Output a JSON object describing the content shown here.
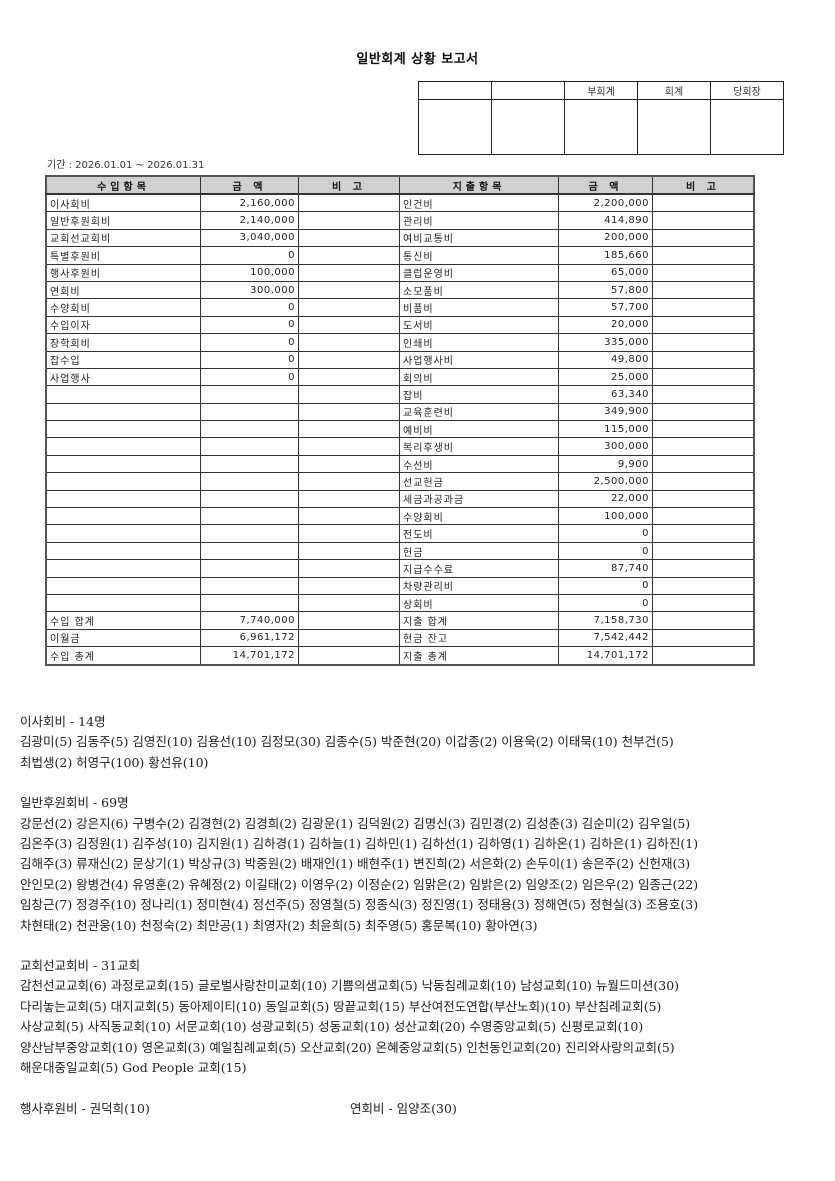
{
  "title": "일반회계 상황 보고서",
  "approval": {
    "headers": [
      "",
      "",
      "부회계",
      "회계",
      "당회장"
    ]
  },
  "period": "기간 : 2026.01.01 ~ 2026.01.31",
  "table": {
    "headers": [
      "수입항목",
      "금  액",
      "비  고",
      "지출항목",
      "금  액",
      "비  고"
    ],
    "income": [
      {
        "item": "이사회비",
        "amount": "2,160,000"
      },
      {
        "item": "일반후원회비",
        "amount": "2,140,000"
      },
      {
        "item": "교회선교회비",
        "amount": "3,040,000"
      },
      {
        "item": "특별후원비",
        "amount": "0"
      },
      {
        "item": "행사후원비",
        "amount": "100,000"
      },
      {
        "item": "연회비",
        "amount": "300,000"
      },
      {
        "item": "수양회비",
        "amount": "0"
      },
      {
        "item": "수입이자",
        "amount": "0"
      },
      {
        "item": "장학회비",
        "amount": "0"
      },
      {
        "item": "잡수입",
        "amount": "0"
      },
      {
        "item": "사업행사",
        "amount": "0"
      }
    ],
    "expense": [
      {
        "item": "인건비",
        "amount": "2,200,000"
      },
      {
        "item": "관리비",
        "amount": "414,890"
      },
      {
        "item": "여비교통비",
        "amount": "200,000"
      },
      {
        "item": "통신비",
        "amount": "185,660"
      },
      {
        "item": "클럽운영비",
        "amount": "65,000"
      },
      {
        "item": "소모품비",
        "amount": "57,800"
      },
      {
        "item": "비품비",
        "amount": "57,700"
      },
      {
        "item": "도서비",
        "amount": "20,000"
      },
      {
        "item": "인쇄비",
        "amount": "335,000"
      },
      {
        "item": "사업행사비",
        "amount": "49,800"
      },
      {
        "item": "회의비",
        "amount": "25,000"
      },
      {
        "item": "잡비",
        "amount": "63,340"
      },
      {
        "item": "교육훈련비",
        "amount": "349,900"
      },
      {
        "item": "예비비",
        "amount": "115,000"
      },
      {
        "item": "복리후생비",
        "amount": "300,000"
      },
      {
        "item": "수선비",
        "amount": "9,900"
      },
      {
        "item": "선교헌금",
        "amount": "2,500,000"
      },
      {
        "item": "세금과공과금",
        "amount": "22,000"
      },
      {
        "item": "수양회비",
        "amount": "100,000"
      },
      {
        "item": "전도비",
        "amount": "0"
      },
      {
        "item": "헌금",
        "amount": "0"
      },
      {
        "item": "지급수수료",
        "amount": "87,740"
      },
      {
        "item": "차량관리비",
        "amount": "0"
      },
      {
        "item": "상회비",
        "amount": "0"
      }
    ],
    "income_totals": [
      {
        "item": "수입 합계",
        "amount": "7,740,000"
      },
      {
        "item": "이월금",
        "amount": "6,961,172"
      },
      {
        "item": "수입 총계",
        "amount": "14,701,172"
      }
    ],
    "expense_totals": [
      {
        "item": "지출 합계",
        "amount": "7,158,730"
      },
      {
        "item": "현금 잔고",
        "amount": "7,542,442"
      },
      {
        "item": "지출 총계",
        "amount": "14,701,172"
      }
    ]
  },
  "notes": {
    "sections": [
      {
        "heading": "이사회비 - 14명",
        "lines": [
          "김광미(5) 김동주(5) 김영진(10) 김용선(10) 김정모(30) 김종수(5) 박준현(20) 이갑종(2) 이용욱(2) 이태묵(10) 천부건(5)",
          "최법생(2) 허영구(100) 황선유(10)"
        ]
      },
      {
        "heading": "일반후원회비 - 69명",
        "lines": [
          "강문선(2) 강은지(6) 구병수(2) 김경현(2) 김경희(2) 김광운(1) 김덕원(2) 김명신(3) 김민경(2) 김성춘(3) 김순미(2) 김우일(5)",
          "김온주(3) 김정원(1) 김주성(10) 김지원(1) 김하경(1) 김하늘(1) 김하민(1) 김하선(1) 김하영(1) 김하온(1) 김하은(1) 김하진(1)",
          "김해주(3) 류재신(2) 문상기(1) 박상규(3) 박중원(2) 배재인(1) 배현주(1) 변진희(2) 서은화(2) 손두이(1) 송은주(2) 신헌재(3)",
          "안인모(2) 왕병건(4) 유영훈(2) 유혜정(2) 이길태(2) 이영우(2) 이정순(2) 임맑은(2) 임밝은(2) 임양조(2) 임은우(2) 임종근(22)",
          "임창근(7) 정경주(10) 정나리(1) 정미현(4) 정선주(5) 정영철(5) 정종식(3) 정진영(1) 정태용(3) 정해연(5) 정현실(3) 조용호(3)",
          "차현태(2) 천관웅(10) 천정숙(2) 최만공(1) 최영자(2) 최윤희(5) 최주영(5) 홍문복(10) 황아연(3)"
        ]
      },
      {
        "heading": "교회선교회비 - 31교회",
        "lines": [
          "감천선교교회(6) 과정로교회(15) 글로벌사랑찬미교회(10) 기쁨의샘교회(5) 낙동침례교회(10) 남성교회(10) 뉴월드미션(30)",
          "다리놓는교회(5) 대지교회(5) 동아제이티(10) 동일교회(5) 땅끝교회(15) 부산여전도연합(부산노회)(10) 부산침례교회(5)",
          "사상교회(5) 사직동교회(10) 서문교회(10) 성광교회(5) 성동교회(10) 성산교회(20) 수영중앙교회(5) 신평로교회(10)",
          "양산남부중앙교회(10) 영온교회(3) 예일침례교회(5) 오산교회(20) 온혜중앙교회(5) 인천동인교회(20) 진리와사랑의교회(5)",
          "해운대중일교회(5) God People 교회(15)"
        ]
      }
    ],
    "event_support": "행사후원비 - 권덕희(10)",
    "annual_fee": "연회비 - 임양조(30)"
  }
}
